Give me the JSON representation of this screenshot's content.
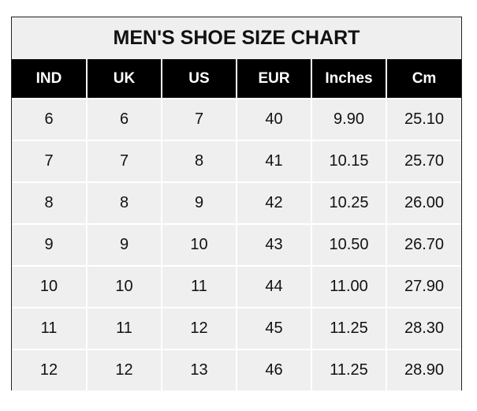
{
  "chart_data": {
    "type": "table",
    "title": "MEN'S SHOE SIZE CHART",
    "columns": [
      "IND",
      "UK",
      "US",
      "EUR",
      "Inches",
      "Cm"
    ],
    "rows": [
      [
        "6",
        "6",
        "7",
        "40",
        "9.90",
        "25.10"
      ],
      [
        "7",
        "7",
        "8",
        "41",
        "10.15",
        "25.70"
      ],
      [
        "8",
        "8",
        "9",
        "42",
        "10.25",
        "26.00"
      ],
      [
        "9",
        "9",
        "10",
        "43",
        "10.50",
        "26.70"
      ],
      [
        "10",
        "10",
        "11",
        "44",
        "11.00",
        "27.90"
      ],
      [
        "11",
        "11",
        "12",
        "45",
        "11.25",
        "28.30"
      ],
      [
        "12",
        "12",
        "13",
        "46",
        "11.25",
        "28.90"
      ]
    ],
    "colors": {
      "header_bg": "#000000",
      "header_text": "#ffffff",
      "cell_bg": "#efefef",
      "cell_text": "#111111"
    }
  }
}
